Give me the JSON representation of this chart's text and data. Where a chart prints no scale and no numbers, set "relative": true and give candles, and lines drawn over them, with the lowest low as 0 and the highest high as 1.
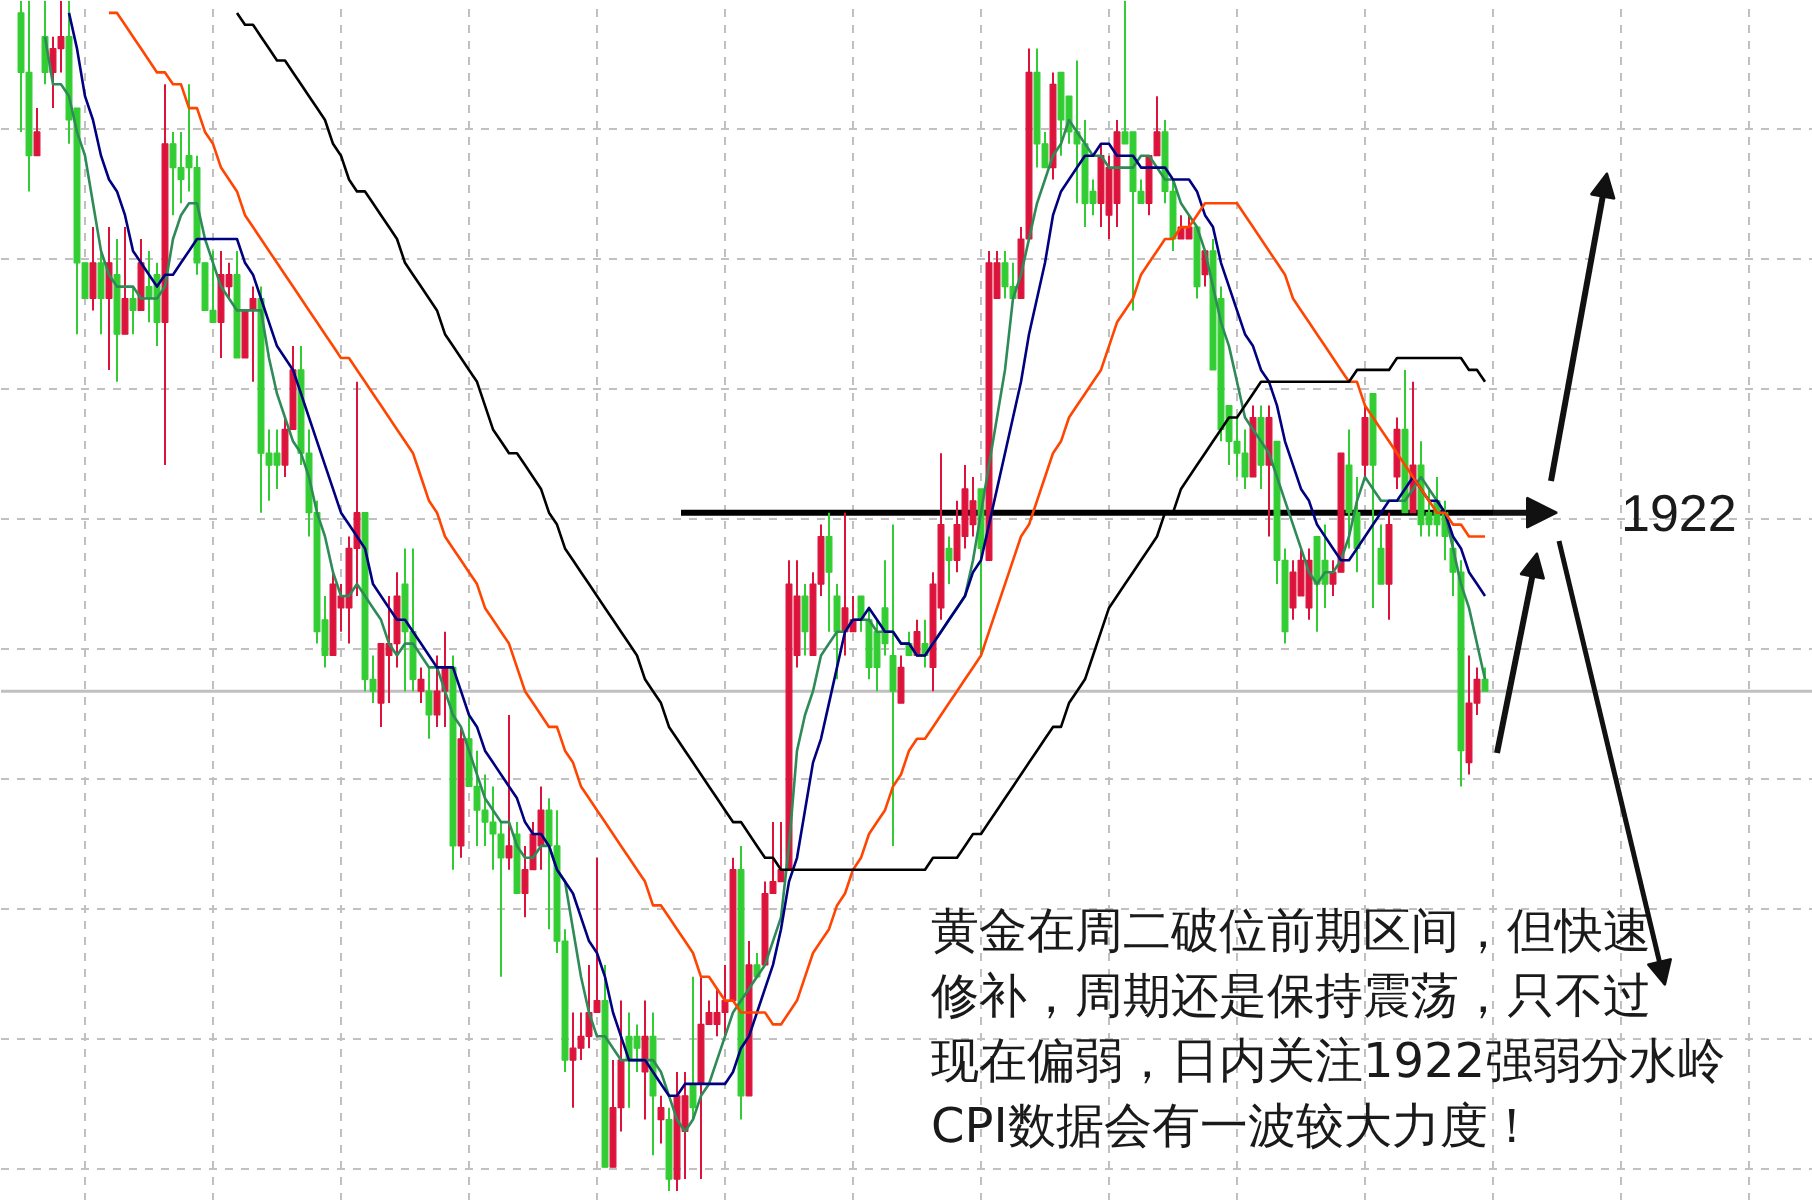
{
  "chart_data": {
    "type": "candlestick",
    "relative": true,
    "grid": true,
    "tick_labels": false,
    "categories": [
      null,
      null,
      null,
      null,
      null,
      null,
      null,
      null,
      null,
      null,
      null,
      null,
      null,
      null,
      null,
      null,
      null,
      null,
      null,
      null,
      null,
      null,
      null,
      null,
      null,
      null,
      null,
      null,
      null,
      null,
      null,
      null,
      null,
      null,
      null,
      null,
      null,
      null,
      null,
      null,
      null,
      null,
      null,
      null,
      null,
      null,
      null,
      null,
      null,
      null,
      null,
      null,
      null,
      null,
      null,
      null,
      null,
      null,
      null,
      null,
      null,
      null,
      null,
      null,
      null,
      null,
      null,
      null,
      null,
      null,
      null,
      null,
      null,
      null,
      null,
      null,
      null,
      null,
      null,
      null,
      null,
      null,
      null,
      null,
      null,
      null,
      null,
      null,
      null,
      null,
      null,
      null,
      null,
      null,
      null,
      null,
      null,
      null,
      null,
      null,
      null,
      null,
      null,
      null,
      null,
      null,
      null,
      null,
      null,
      null,
      null,
      null,
      null,
      null,
      null,
      null,
      null,
      null,
      null,
      null,
      null,
      null,
      null,
      null,
      null,
      null,
      null,
      null,
      null,
      null,
      null,
      null,
      null,
      null,
      null,
      null,
      null,
      null,
      null,
      null,
      null,
      null,
      null,
      null,
      null,
      null,
      null,
      null,
      null,
      null,
      null,
      null,
      null,
      null,
      null,
      null,
      null,
      null,
      null,
      null,
      null,
      null,
      null,
      null,
      null,
      null,
      null,
      null,
      null,
      null,
      null,
      null,
      null,
      null,
      null,
      null,
      null,
      null,
      null,
      null,
      null,
      null,
      null,
      null
    ],
    "ohlc": [
      [
        0.99,
        1,
        0.89,
        0.94
      ],
      [
        0.94,
        1,
        0.84,
        0.87
      ],
      [
        0.87,
        0.91,
        0.87,
        0.89
      ],
      [
        0.97,
        1,
        0.93,
        0.94
      ],
      [
        0.94,
        0.97,
        0.91,
        0.96
      ],
      [
        0.96,
        1,
        0.94,
        0.97
      ],
      [
        0.97,
        1,
        0.88,
        0.9
      ],
      [
        0.91,
        0.91,
        0.72,
        0.78
      ],
      [
        0.78,
        0.78,
        0.75,
        0.75
      ],
      [
        0.75,
        0.81,
        0.74,
        0.78
      ],
      [
        0.78,
        0.79,
        0.72,
        0.75
      ],
      [
        0.75,
        0.81,
        0.69,
        0.78
      ],
      [
        0.77,
        0.8,
        0.68,
        0.72
      ],
      [
        0.72,
        0.81,
        0.72,
        0.75
      ],
      [
        0.75,
        0.76,
        0.72,
        0.74
      ],
      [
        0.74,
        0.8,
        0.74,
        0.78
      ],
      [
        0.76,
        0.79,
        0.73,
        0.75
      ],
      [
        0.77,
        0.78,
        0.71,
        0.73
      ],
      [
        0.73,
        0.93,
        0.61,
        0.88
      ],
      [
        0.88,
        0.89,
        0.82,
        0.86
      ],
      [
        0.86,
        0.89,
        0.83,
        0.85
      ],
      [
        0.87,
        0.93,
        0.84,
        0.86
      ],
      [
        0.86,
        0.87,
        0.77,
        0.78
      ],
      [
        0.78,
        0.78,
        0.74,
        0.74
      ],
      [
        0.74,
        0.79,
        0.73,
        0.73
      ],
      [
        0.73,
        0.79,
        0.7,
        0.77
      ],
      [
        0.76,
        0.78,
        0.75,
        0.77
      ],
      [
        0.77,
        0.79,
        0.7,
        0.7
      ],
      [
        0.7,
        0.74,
        0.7,
        0.74
      ],
      [
        0.74,
        0.76,
        0.68,
        0.75
      ],
      [
        0.75,
        0.76,
        0.57,
        0.62
      ],
      [
        0.62,
        0.64,
        0.58,
        0.61
      ],
      [
        0.62,
        0.64,
        0.59,
        0.61
      ],
      [
        0.61,
        0.65,
        0.6,
        0.64
      ],
      [
        0.64,
        0.71,
        0.64,
        0.69
      ],
      [
        0.69,
        0.71,
        0.61,
        0.62
      ],
      [
        0.62,
        0.64,
        0.55,
        0.57
      ],
      [
        0.57,
        0.58,
        0.46,
        0.47
      ],
      [
        0.48,
        0.5,
        0.44,
        0.45
      ],
      [
        0.45,
        0.52,
        0.45,
        0.51
      ],
      [
        0.49,
        0.51,
        0.47,
        0.5
      ],
      [
        0.49,
        0.55,
        0.46,
        0.54
      ],
      [
        0.54,
        0.68,
        0.5,
        0.57
      ],
      [
        0.57,
        0.57,
        0.42,
        0.43
      ],
      [
        0.43,
        0.45,
        0.41,
        0.42
      ],
      [
        0.41,
        0.46,
        0.39,
        0.46
      ],
      [
        0.45,
        0.5,
        0.41,
        0.46
      ],
      [
        0.46,
        0.52,
        0.44,
        0.5
      ],
      [
        0.51,
        0.54,
        0.42,
        0.47
      ],
      [
        0.47,
        0.54,
        0.42,
        0.43
      ],
      [
        0.42,
        0.44,
        0.41,
        0.43
      ],
      [
        0.42,
        0.44,
        0.38,
        0.4
      ],
      [
        0.4,
        0.45,
        0.39,
        0.42
      ],
      [
        0.42,
        0.47,
        0.39,
        0.44
      ],
      [
        0.44,
        0.45,
        0.27,
        0.29
      ],
      [
        0.29,
        0.39,
        0.28,
        0.38
      ],
      [
        0.38,
        0.4,
        0.34,
        0.34
      ],
      [
        0.34,
        0.37,
        0.29,
        0.32
      ],
      [
        0.32,
        0.35,
        0.29,
        0.31
      ],
      [
        0.31,
        0.34,
        0.27,
        0.3
      ],
      [
        0.3,
        0.31,
        0.18,
        0.28
      ],
      [
        0.28,
        0.4,
        0.27,
        0.29
      ],
      [
        0.3,
        0.31,
        0.25,
        0.25
      ],
      [
        0.25,
        0.29,
        0.23,
        0.27
      ],
      [
        0.27,
        0.31,
        0.27,
        0.3
      ],
      [
        0.29,
        0.34,
        0.27,
        0.32
      ],
      [
        0.32,
        0.33,
        0.22,
        0.29
      ],
      [
        0.29,
        0.32,
        0.2,
        0.21
      ],
      [
        0.21,
        0.22,
        0.1,
        0.11
      ],
      [
        0.11,
        0.15,
        0.07,
        0.12
      ],
      [
        0.12,
        0.15,
        0.11,
        0.13
      ],
      [
        0.13,
        0.19,
        0.12,
        0.15
      ],
      [
        0.15,
        0.28,
        0.15,
        0.16
      ],
      [
        0.16,
        0.19,
        0.02,
        0.02
      ],
      [
        0.02,
        0.11,
        0.02,
        0.07
      ],
      [
        0.07,
        0.16,
        0.05,
        0.11
      ],
      [
        0.13,
        0.15,
        0.07,
        0.11
      ],
      [
        0.13,
        0.14,
        0.1,
        0.12
      ],
      [
        0.1,
        0.16,
        0.06,
        0.13
      ],
      [
        0.13,
        0.15,
        0.03,
        0.08
      ],
      [
        0.06,
        0.08,
        0.04,
        0.07
      ],
      [
        0.06,
        0.07,
        0,
        0.01
      ],
      [
        0.01,
        0.1,
        0,
        0.08
      ],
      [
        0.05,
        0.1,
        0.01,
        0.08
      ],
      [
        0.09,
        0.18,
        0.06,
        0.07
      ],
      [
        0.09,
        0.18,
        0.01,
        0.14
      ],
      [
        0.14,
        0.16,
        0.14,
        0.15
      ],
      [
        0.14,
        0.17,
        0.13,
        0.15
      ],
      [
        0.15,
        0.19,
        0.13,
        0.16
      ],
      [
        0.16,
        0.28,
        0.16,
        0.27
      ],
      [
        0.27,
        0.29,
        0.06,
        0.08
      ],
      [
        0.08,
        0.21,
        0.08,
        0.19
      ],
      [
        0.19,
        0.2,
        0.18,
        0.18
      ],
      [
        0.19,
        0.26,
        0.19,
        0.25
      ],
      [
        0.25,
        0.31,
        0.25,
        0.26
      ],
      [
        0.26,
        0.31,
        0.26,
        0.27
      ],
      [
        0.27,
        0.53,
        0.27,
        0.51
      ],
      [
        0.45,
        0.53,
        0.44,
        0.5
      ],
      [
        0.5,
        0.51,
        0.45,
        0.47
      ],
      [
        0.45,
        0.52,
        0.45,
        0.51
      ],
      [
        0.51,
        0.56,
        0.5,
        0.55
      ],
      [
        0.55,
        0.57,
        0.47,
        0.52
      ],
      [
        0.5,
        0.51,
        0.43,
        0.47
      ],
      [
        0.47,
        0.57,
        0.45,
        0.49
      ],
      [
        0.47,
        0.5,
        0.47,
        0.48
      ],
      [
        0.5,
        0.5,
        0.47,
        0.48
      ],
      [
        0.48,
        0.49,
        0.43,
        0.44
      ],
      [
        0.47,
        0.48,
        0.42,
        0.44
      ],
      [
        0.49,
        0.53,
        0.45,
        0.46
      ],
      [
        0.45,
        0.56,
        0.29,
        0.42
      ],
      [
        0.41,
        0.45,
        0.41,
        0.44
      ],
      [
        0.46,
        0.47,
        0.45,
        0.45
      ],
      [
        0.45,
        0.48,
        0.45,
        0.47
      ],
      [
        0.46,
        0.48,
        0.44,
        0.45
      ],
      [
        0.44,
        0.52,
        0.42,
        0.51
      ],
      [
        0.49,
        0.62,
        0.48,
        0.56
      ],
      [
        0.54,
        0.55,
        0.51,
        0.53
      ],
      [
        0.53,
        0.58,
        0.52,
        0.56
      ],
      [
        0.55,
        0.61,
        0.54,
        0.59
      ],
      [
        0.56,
        0.6,
        0.55,
        0.58
      ],
      [
        0.59,
        0.59,
        0.45,
        0.54
      ],
      [
        0.53,
        0.79,
        0.53,
        0.78
      ],
      [
        0.75,
        0.79,
        0.75,
        0.78
      ],
      [
        0.78,
        0.79,
        0.75,
        0.76
      ],
      [
        0.76,
        0.78,
        0.75,
        0.75
      ],
      [
        0.75,
        0.81,
        0.75,
        0.8
      ],
      [
        0.8,
        0.96,
        0.8,
        0.94
      ],
      [
        0.94,
        0.96,
        0.86,
        0.88
      ],
      [
        0.88,
        0.89,
        0.86,
        0.86
      ],
      [
        0.86,
        0.94,
        0.85,
        0.93
      ],
      [
        0.94,
        0.94,
        0.87,
        0.9
      ],
      [
        0.92,
        0.92,
        0.88,
        0.89
      ],
      [
        0.89,
        0.95,
        0.83,
        0.88
      ],
      [
        0.88,
        0.9,
        0.81,
        0.83
      ],
      [
        0.84,
        0.85,
        0.82,
        0.83
      ],
      [
        0.83,
        0.88,
        0.81,
        0.87
      ],
      [
        0.82,
        0.87,
        0.8,
        0.86
      ],
      [
        0.83,
        0.9,
        0.81,
        0.89
      ],
      [
        0.89,
        1,
        0.88,
        0.88
      ],
      [
        0.89,
        0.89,
        0.74,
        0.84
      ],
      [
        0.84,
        0.85,
        0.83,
        0.83
      ],
      [
        0.83,
        0.87,
        0.82,
        0.87
      ],
      [
        0.87,
        0.92,
        0.87,
        0.89
      ],
      [
        0.89,
        0.9,
        0.83,
        0.84
      ],
      [
        0.84,
        0.85,
        0.79,
        0.8
      ],
      [
        0.8,
        0.82,
        0.8,
        0.81
      ],
      [
        0.8,
        0.82,
        0.8,
        0.81
      ],
      [
        0.81,
        0.81,
        0.75,
        0.76
      ],
      [
        0.77,
        0.79,
        0.76,
        0.79
      ],
      [
        0.79,
        0.8,
        0.69,
        0.69
      ],
      [
        0.75,
        0.76,
        0.63,
        0.64
      ],
      [
        0.66,
        0.66,
        0.61,
        0.63
      ],
      [
        0.63,
        0.65,
        0.6,
        0.62
      ],
      [
        0.62,
        0.64,
        0.59,
        0.6
      ],
      [
        0.6,
        0.66,
        0.6,
        0.65
      ],
      [
        0.65,
        0.66,
        0.59,
        0.61
      ],
      [
        0.61,
        0.66,
        0.55,
        0.65
      ],
      [
        0.63,
        0.63,
        0.51,
        0.53
      ],
      [
        0.53,
        0.54,
        0.46,
        0.47
      ],
      [
        0.49,
        0.53,
        0.48,
        0.52
      ],
      [
        0.5,
        0.54,
        0.5,
        0.53
      ],
      [
        0.49,
        0.54,
        0.48,
        0.53
      ],
      [
        0.55,
        0.55,
        0.47,
        0.51
      ],
      [
        0.53,
        0.56,
        0.49,
        0.51
      ],
      [
        0.51,
        0.53,
        0.5,
        0.52
      ],
      [
        0.52,
        0.62,
        0.52,
        0.62
      ],
      [
        0.61,
        0.64,
        0.54,
        0.57
      ],
      [
        0.57,
        0.6,
        0.52,
        0.54
      ],
      [
        0.61,
        0.66,
        0.6,
        0.65
      ],
      [
        0.67,
        0.67,
        0.49,
        0.61
      ],
      [
        0.54,
        0.56,
        0.51,
        0.51
      ],
      [
        0.51,
        0.57,
        0.48,
        0.56
      ],
      [
        0.6,
        0.65,
        0.59,
        0.64
      ],
      [
        0.64,
        0.69,
        0.57,
        0.57
      ],
      [
        0.57,
        0.68,
        0.57,
        0.61
      ],
      [
        0.61,
        0.63,
        0.55,
        0.56
      ],
      [
        0.57,
        0.59,
        0.55,
        0.56
      ],
      [
        0.58,
        0.6,
        0.55,
        0.56
      ],
      [
        0.57,
        0.58,
        0.53,
        0.55
      ],
      [
        0.54,
        0.55,
        0.5,
        0.52
      ],
      [
        0.52,
        0.53,
        0.34,
        0.37
      ],
      [
        0.36,
        0.45,
        0.35,
        0.41
      ],
      [
        0.41,
        0.44,
        0.4,
        0.43
      ],
      [
        0.43,
        0.44,
        0.42,
        0.42
      ]
    ],
    "colors": [
      "#32cd32",
      "#32cd32",
      "#dc143c",
      "#32cd32",
      "#dc143c",
      "#dc143c",
      "#32cd32",
      "#32cd32",
      "#32cd32",
      "#dc143c",
      "#32cd32",
      "#dc143c",
      "#32cd32",
      "#dc143c",
      "#32cd32",
      "#dc143c",
      "#32cd32",
      "#32cd32",
      "#dc143c",
      "#32cd32",
      "#32cd32",
      "#32cd32",
      "#32cd32",
      "#32cd32",
      "#32cd32",
      "#dc143c",
      "#dc143c",
      "#32cd32",
      "#dc143c",
      "#dc143c",
      "#32cd32",
      "#32cd32",
      "#32cd32",
      "#dc143c",
      "#dc143c",
      "#32cd32",
      "#32cd32",
      "#32cd32",
      "#32cd32",
      "#dc143c",
      "#dc143c",
      "#dc143c",
      "#dc143c",
      "#32cd32",
      "#32cd32",
      "#dc143c",
      "#dc143c",
      "#dc143c",
      "#32cd32",
      "#32cd32",
      "#dc143c",
      "#32cd32",
      "#dc143c",
      "#dc143c",
      "#32cd32",
      "#dc143c",
      "#32cd32",
      "#32cd32",
      "#32cd32",
      "#32cd32",
      "#32cd32",
      "#dc143c",
      "#32cd32",
      "#dc143c",
      "#dc143c",
      "#dc143c",
      "#32cd32",
      "#32cd32",
      "#32cd32",
      "#dc143c",
      "#dc143c",
      "#dc143c",
      "#dc143c",
      "#32cd32",
      "#dc143c",
      "#dc143c",
      "#32cd32",
      "#32cd32",
      "#dc143c",
      "#32cd32",
      "#dc143c",
      "#32cd32",
      "#dc143c",
      "#dc143c",
      "#32cd32",
      "#dc143c",
      "#dc143c",
      "#dc143c",
      "#dc143c",
      "#dc143c",
      "#32cd32",
      "#dc143c",
      "#32cd32",
      "#dc143c",
      "#dc143c",
      "#dc143c",
      "#dc143c",
      "#dc143c",
      "#32cd32",
      "#dc143c",
      "#dc143c",
      "#32cd32",
      "#32cd32",
      "#dc143c",
      "#dc143c",
      "#32cd32",
      "#32cd32",
      "#32cd32",
      "#32cd32",
      "#32cd32",
      "#dc143c",
      "#32cd32",
      "#dc143c",
      "#32cd32",
      "#dc143c",
      "#dc143c",
      "#32cd32",
      "#dc143c",
      "#dc143c",
      "#dc143c",
      "#32cd32",
      "#dc143c",
      "#dc143c",
      "#32cd32",
      "#32cd32",
      "#dc143c",
      "#dc143c",
      "#32cd32",
      "#32cd32",
      "#dc143c",
      "#32cd32",
      "#32cd32",
      "#32cd32",
      "#32cd32",
      "#32cd32",
      "#dc143c",
      "#dc143c",
      "#dc143c",
      "#32cd32",
      "#32cd32",
      "#32cd32",
      "#dc143c",
      "#dc143c",
      "#32cd32",
      "#32cd32",
      "#dc143c",
      "#dc143c",
      "#32cd32",
      "#dc143c",
      "#32cd32",
      "#32cd32",
      "#32cd32",
      "#32cd32",
      "#32cd32",
      "#dc143c",
      "#32cd32",
      "#dc143c",
      "#32cd32",
      "#32cd32",
      "#dc143c",
      "#dc143c",
      "#dc143c",
      "#32cd32",
      "#32cd32",
      "#dc143c",
      "#dc143c",
      "#32cd32",
      "#32cd32",
      "#dc143c",
      "#32cd32",
      "#32cd32",
      "#dc143c",
      "#dc143c",
      "#32cd32",
      "#dc143c",
      "#32cd32",
      "#32cd32",
      "#32cd32",
      "#32cd32",
      "#32cd32",
      "#32cd32",
      "#dc143c",
      "#dc143c",
      "#32cd32"
    ],
    "series": [
      {
        "type": "line",
        "color": "#2e8b57",
        "values": [
          null,
          null,
          null,
          0.97,
          0.93,
          0.93,
          0.92,
          0.89,
          0.87,
          0.83,
          0.79,
          0.77,
          0.76,
          0.76,
          0.76,
          0.75,
          0.75,
          0.75,
          0.76,
          0.8,
          0.82,
          0.83,
          0.83,
          0.8,
          0.78,
          0.76,
          0.75,
          0.74,
          0.74,
          0.74,
          0.74,
          0.7,
          0.67,
          0.65,
          0.63,
          0.62,
          0.6,
          0.57,
          0.55,
          0.52,
          0.5,
          0.5,
          0.51,
          0.5,
          0.49,
          0.48,
          0.46,
          0.45,
          0.46,
          0.46,
          0.45,
          0.44,
          0.44,
          0.42,
          0.4,
          0.39,
          0.37,
          0.35,
          0.33,
          0.32,
          0.31,
          0.31,
          0.29,
          0.28,
          0.28,
          0.29,
          0.29,
          0.27,
          0.26,
          0.22,
          0.18,
          0.15,
          0.13,
          0.13,
          0.12,
          0.11,
          0.11,
          0.11,
          0.11,
          0.11,
          0.1,
          0.08,
          0.06,
          0.05,
          0.06,
          0.08,
          0.09,
          0.11,
          0.13,
          0.15,
          0.16,
          0.17,
          0.18,
          0.19,
          0.21,
          0.23,
          0.29,
          0.37,
          0.4,
          0.42,
          0.45,
          0.46,
          0.47,
          0.47,
          0.48,
          0.48,
          0.48,
          0.47,
          0.47,
          0.47,
          0.46,
          0.46,
          0.45,
          0.45,
          0.46,
          0.47,
          0.48,
          0.49,
          0.5,
          0.53,
          0.57,
          0.61,
          0.65,
          0.69,
          0.75,
          0.77,
          0.8,
          0.83,
          0.85,
          0.87,
          0.88,
          0.9,
          0.89,
          0.88,
          0.87,
          0.87,
          0.86,
          0.86,
          0.86,
          0.86,
          0.87,
          0.87,
          0.86,
          0.85,
          0.85,
          0.83,
          0.82,
          0.81,
          0.79,
          0.76,
          0.73,
          0.71,
          0.68,
          0.65,
          0.64,
          0.63,
          0.62,
          0.6,
          0.58,
          0.56,
          0.54,
          0.52,
          0.51,
          0.52,
          0.52,
          0.53,
          0.55,
          0.58,
          0.6,
          0.59,
          0.58,
          0.58,
          0.58,
          0.58,
          0.59,
          0.6,
          0.59,
          0.58,
          0.57,
          0.54,
          0.51,
          0.49,
          0.46,
          0.43
        ]
      },
      {
        "type": "line",
        "color": "#000080",
        "values": [
          null,
          null,
          null,
          null,
          null,
          null,
          0.99,
          0.96,
          0.92,
          0.9,
          0.87,
          0.85,
          0.84,
          0.82,
          0.79,
          0.78,
          0.77,
          0.76,
          0.77,
          0.77,
          0.78,
          0.79,
          0.8,
          0.8,
          0.8,
          0.8,
          0.8,
          0.8,
          0.78,
          0.77,
          0.75,
          0.73,
          0.71,
          0.7,
          0.69,
          0.67,
          0.65,
          0.63,
          0.61,
          0.59,
          0.57,
          0.56,
          0.55,
          0.54,
          0.51,
          0.5,
          0.49,
          0.48,
          0.48,
          0.47,
          0.46,
          0.45,
          0.44,
          0.44,
          0.44,
          0.42,
          0.4,
          0.39,
          0.37,
          0.36,
          0.35,
          0.34,
          0.33,
          0.31,
          0.3,
          0.3,
          0.29,
          0.27,
          0.26,
          0.25,
          0.23,
          0.21,
          0.2,
          0.18,
          0.15,
          0.13,
          0.11,
          0.11,
          0.11,
          0.1,
          0.09,
          0.08,
          0.08,
          0.09,
          0.09,
          0.09,
          0.09,
          0.09,
          0.09,
          0.1,
          0.12,
          0.13,
          0.15,
          0.17,
          0.19,
          0.22,
          0.26,
          0.28,
          0.32,
          0.36,
          0.38,
          0.41,
          0.44,
          0.47,
          0.48,
          0.48,
          0.49,
          0.48,
          0.47,
          0.47,
          0.46,
          0.46,
          0.45,
          0.45,
          0.46,
          0.47,
          0.48,
          0.49,
          0.5,
          0.52,
          0.53,
          0.56,
          0.59,
          0.62,
          0.65,
          0.68,
          0.72,
          0.75,
          0.78,
          0.82,
          0.84,
          0.85,
          0.86,
          0.87,
          0.87,
          0.88,
          0.88,
          0.87,
          0.87,
          0.87,
          0.86,
          0.86,
          0.86,
          0.86,
          0.85,
          0.85,
          0.85,
          0.84,
          0.82,
          0.81,
          0.78,
          0.76,
          0.74,
          0.72,
          0.71,
          0.69,
          0.68,
          0.66,
          0.63,
          0.61,
          0.59,
          0.58,
          0.56,
          0.55,
          0.54,
          0.53,
          0.53,
          0.54,
          0.55,
          0.56,
          0.57,
          0.58,
          0.58,
          0.59,
          0.6,
          0.59,
          0.58,
          0.58,
          0.57,
          0.55,
          0.54,
          0.52,
          0.51,
          0.5
        ]
      },
      {
        "type": "line",
        "color": "#ff4500",
        "values": [
          null,
          null,
          null,
          null,
          null,
          null,
          null,
          null,
          null,
          null,
          null,
          0.99,
          0.99,
          0.98,
          0.97,
          0.96,
          0.95,
          0.94,
          0.94,
          0.93,
          0.93,
          0.91,
          0.91,
          0.89,
          0.88,
          0.86,
          0.85,
          0.84,
          0.82,
          0.81,
          0.8,
          0.79,
          0.78,
          0.77,
          0.76,
          0.75,
          0.74,
          0.73,
          0.72,
          0.71,
          0.7,
          0.7,
          0.69,
          0.68,
          0.67,
          0.66,
          0.65,
          0.64,
          0.63,
          0.62,
          0.6,
          0.58,
          0.57,
          0.55,
          0.54,
          0.53,
          0.52,
          0.51,
          0.49,
          0.48,
          0.47,
          0.46,
          0.44,
          0.42,
          0.41,
          0.4,
          0.39,
          0.39,
          0.37,
          0.36,
          0.34,
          0.33,
          0.32,
          0.31,
          0.3,
          0.29,
          0.28,
          0.27,
          0.26,
          0.24,
          0.24,
          0.23,
          0.22,
          0.21,
          0.2,
          0.18,
          0.18,
          0.17,
          0.16,
          0.16,
          0.15,
          0.15,
          0.15,
          0.15,
          0.14,
          0.14,
          0.15,
          0.16,
          0.18,
          0.2,
          0.21,
          0.22,
          0.24,
          0.25,
          0.27,
          0.28,
          0.3,
          0.31,
          0.32,
          0.34,
          0.35,
          0.37,
          0.38,
          0.38,
          0.39,
          0.4,
          0.41,
          0.42,
          0.43,
          0.44,
          0.45,
          0.47,
          0.49,
          0.51,
          0.53,
          0.55,
          0.56,
          0.58,
          0.6,
          0.62,
          0.63,
          0.65,
          0.66,
          0.67,
          0.68,
          0.69,
          0.71,
          0.73,
          0.74,
          0.75,
          0.77,
          0.78,
          0.79,
          0.8,
          0.8,
          0.81,
          0.81,
          0.82,
          0.83,
          0.83,
          0.83,
          0.83,
          0.83,
          0.82,
          0.81,
          0.8,
          0.79,
          0.78,
          0.77,
          0.75,
          0.74,
          0.73,
          0.72,
          0.71,
          0.7,
          0.69,
          0.68,
          0.68,
          0.66,
          0.65,
          0.64,
          0.63,
          0.62,
          0.61,
          0.6,
          0.59,
          0.58,
          0.57,
          0.57,
          0.56,
          0.56,
          0.55,
          0.55,
          0.55
        ]
      },
      {
        "type": "line",
        "color": "#000000",
        "values": [
          null,
          null,
          null,
          null,
          null,
          null,
          null,
          null,
          null,
          null,
          null,
          null,
          null,
          null,
          null,
          null,
          null,
          null,
          null,
          null,
          null,
          null,
          null,
          null,
          null,
          null,
          null,
          0.99,
          0.98,
          0.98,
          0.97,
          0.96,
          0.95,
          0.95,
          0.94,
          0.93,
          0.92,
          0.91,
          0.9,
          0.88,
          0.87,
          0.85,
          0.84,
          0.84,
          0.83,
          0.82,
          0.81,
          0.8,
          0.78,
          0.77,
          0.76,
          0.75,
          0.74,
          0.72,
          0.71,
          0.7,
          0.69,
          0.68,
          0.66,
          0.64,
          0.63,
          0.62,
          0.62,
          0.61,
          0.6,
          0.59,
          0.57,
          0.56,
          0.54,
          0.53,
          0.52,
          0.51,
          0.5,
          0.49,
          0.48,
          0.47,
          0.46,
          0.45,
          0.43,
          0.42,
          0.41,
          0.39,
          0.38,
          0.37,
          0.36,
          0.35,
          0.34,
          0.33,
          0.32,
          0.31,
          0.31,
          0.3,
          0.29,
          0.28,
          0.28,
          0.27,
          0.27,
          0.27,
          0.27,
          0.27,
          0.27,
          0.27,
          0.27,
          0.27,
          0.27,
          0.27,
          0.27,
          0.27,
          0.27,
          0.27,
          0.27,
          0.27,
          0.27,
          0.27,
          0.28,
          0.28,
          0.28,
          0.28,
          0.29,
          0.3,
          0.3,
          0.31,
          0.32,
          0.33,
          0.34,
          0.35,
          0.36,
          0.37,
          0.38,
          0.39,
          0.39,
          0.41,
          0.42,
          0.43,
          0.45,
          0.47,
          0.49,
          0.5,
          0.51,
          0.52,
          0.53,
          0.54,
          0.55,
          0.57,
          0.57,
          0.59,
          0.6,
          0.61,
          0.62,
          0.63,
          0.64,
          0.65,
          0.65,
          0.66,
          0.67,
          0.68,
          0.68,
          0.68,
          0.68,
          0.68,
          0.68,
          0.68,
          0.68,
          0.68,
          0.68,
          0.68,
          0.68,
          0.69,
          0.69,
          0.69,
          0.69,
          0.69,
          0.7,
          0.7,
          0.7,
          0.7,
          0.7,
          0.7,
          0.7,
          0.7,
          0.7,
          0.69,
          0.69,
          0.68
        ]
      }
    ],
    "ref_lines": [
      {
        "axis": "y",
        "value": 0.57,
        "color": "#000000"
      },
      {
        "axis": "y",
        "value": 0.42,
        "color": "#c0c0c0"
      }
    ],
    "annotations": [
      "1922",
      "黄金在周二破位前期区间，但快速",
      "修补，周期还是保持震荡，只不过",
      "现在偏弱，日内关注1922强弱分水岭",
      "CPI数据会有一波较大力度！"
    ]
  }
}
